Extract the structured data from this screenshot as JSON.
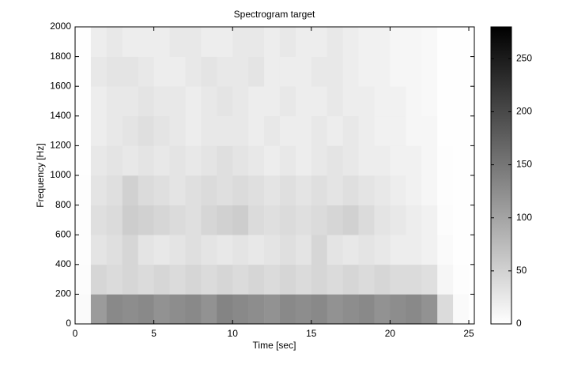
{
  "chart_data": {
    "type": "heatmap",
    "title": "Spectrogram target",
    "xlabel": "Time [sec]",
    "ylabel": "Frequency [Hz]",
    "xbins": [
      0,
      1,
      2,
      3,
      4,
      5,
      6,
      7,
      8,
      9,
      10,
      11,
      12,
      13,
      14,
      15,
      16,
      17,
      18,
      19,
      20,
      21,
      22,
      23,
      24,
      25
    ],
    "ybins": [
      0,
      200,
      400,
      600,
      800,
      1000,
      1200,
      1400,
      1600,
      1800,
      2000
    ],
    "values": [
      [
        5,
        110,
        130,
        125,
        130,
        120,
        125,
        130,
        120,
        135,
        130,
        125,
        120,
        130,
        125,
        130,
        120,
        125,
        130,
        120,
        125,
        130,
        120,
        40,
        5
      ],
      [
        3,
        45,
        40,
        45,
        40,
        45,
        40,
        45,
        40,
        45,
        40,
        45,
        40,
        45,
        40,
        45,
        40,
        45,
        40,
        45,
        40,
        40,
        35,
        10,
        2
      ],
      [
        2,
        30,
        35,
        45,
        30,
        25,
        30,
        35,
        30,
        25,
        30,
        25,
        30,
        35,
        30,
        45,
        30,
        25,
        30,
        25,
        20,
        20,
        15,
        5,
        1
      ],
      [
        2,
        35,
        40,
        55,
        50,
        45,
        40,
        35,
        45,
        50,
        55,
        40,
        35,
        40,
        35,
        40,
        45,
        50,
        40,
        30,
        25,
        20,
        15,
        3,
        1
      ],
      [
        2,
        30,
        35,
        50,
        40,
        35,
        30,
        35,
        40,
        35,
        40,
        35,
        30,
        35,
        30,
        35,
        30,
        35,
        30,
        25,
        20,
        15,
        10,
        2,
        1
      ],
      [
        1,
        25,
        30,
        25,
        30,
        25,
        30,
        25,
        30,
        35,
        30,
        25,
        20,
        25,
        20,
        25,
        30,
        25,
        20,
        20,
        15,
        15,
        10,
        2,
        1
      ],
      [
        1,
        20,
        25,
        30,
        35,
        30,
        25,
        20,
        25,
        25,
        25,
        20,
        25,
        20,
        20,
        25,
        20,
        25,
        20,
        15,
        15,
        10,
        10,
        1,
        1
      ],
      [
        1,
        20,
        25,
        25,
        30,
        25,
        25,
        20,
        25,
        30,
        25,
        20,
        20,
        25,
        20,
        20,
        25,
        20,
        20,
        15,
        15,
        10,
        8,
        1,
        1
      ],
      [
        1,
        25,
        30,
        30,
        25,
        20,
        20,
        25,
        30,
        25,
        25,
        30,
        20,
        20,
        20,
        25,
        25,
        20,
        15,
        15,
        10,
        10,
        8,
        1,
        1
      ],
      [
        1,
        20,
        25,
        20,
        20,
        20,
        25,
        25,
        20,
        20,
        25,
        25,
        20,
        25,
        20,
        20,
        25,
        20,
        15,
        15,
        10,
        10,
        8,
        1,
        1
      ]
    ],
    "xlim": [
      0,
      25.35
    ],
    "ylim": [
      0,
      2000
    ],
    "xticks": [
      0,
      5,
      10,
      15,
      20,
      25
    ],
    "yticks": [
      0,
      200,
      400,
      600,
      800,
      1000,
      1200,
      1400,
      1600,
      1800,
      2000
    ],
    "clim": [
      0,
      280
    ],
    "cticks": [
      0,
      50,
      100,
      150,
      200,
      250
    ],
    "colormap": [
      "#ffffff",
      "#000000"
    ]
  }
}
